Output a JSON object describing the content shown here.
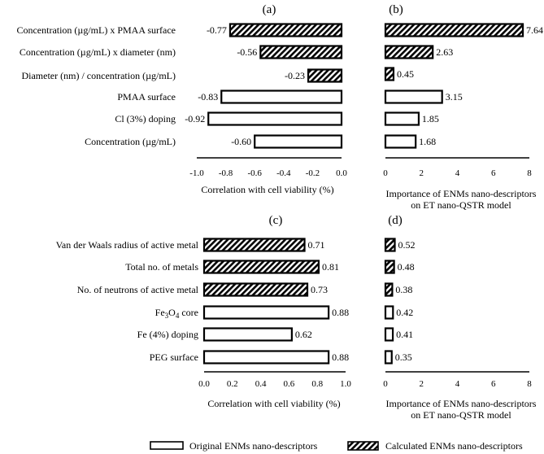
{
  "chart_data": [
    {
      "type": "bar",
      "orientation": "horizontal",
      "panel_label": "(a)",
      "categories": [
        "Concentration (µg/mL) x PMAA surface",
        "Concentration (µg/mL) x diameter (nm)",
        "Diameter (nm) / concentration (µg/mL)",
        "PMAA surface",
        "Cl (3%) doping",
        "Concentration (µg/mL)"
      ],
      "values": [
        -0.77,
        -0.56,
        -0.23,
        -0.83,
        -0.92,
        -0.6
      ],
      "value_labels": [
        "-0.77",
        "-0.56",
        "-0.23",
        "-0.83",
        "-0.92",
        "-0.60"
      ],
      "kinds": [
        "calculated",
        "calculated",
        "calculated",
        "original",
        "original",
        "original"
      ],
      "xlim": [
        -1.0,
        0.0
      ],
      "xticks": [
        "-1.0",
        "-0.8",
        "-0.6",
        "-0.4",
        "-0.2",
        "0.0"
      ],
      "xlabel": [
        "Correlation with cell viability (%)"
      ]
    },
    {
      "type": "bar",
      "orientation": "horizontal",
      "panel_label": "(b)",
      "values": [
        7.64,
        2.63,
        0.45,
        3.15,
        1.85,
        1.68
      ],
      "value_labels": [
        "7.64",
        "2.63",
        "0.45",
        "3.15",
        "1.85",
        "1.68"
      ],
      "kinds": [
        "calculated",
        "calculated",
        "calculated",
        "original",
        "original",
        "original"
      ],
      "xlim": [
        0,
        8
      ],
      "xticks": [
        "0",
        "2",
        "4",
        "6",
        "8"
      ],
      "xlabel": [
        "Importance of ENMs nano-descriptors",
        "on ET nano-QSTR model"
      ]
    },
    {
      "type": "bar",
      "orientation": "horizontal",
      "panel_label": "(c)",
      "categories": [
        "Van der Waals radius of active metal",
        "Total no. of metals",
        "No. of neutrons of active metal",
        "Fe3O4 core",
        "Fe (4%) doping",
        "PEG surface"
      ],
      "values": [
        0.71,
        0.81,
        0.73,
        0.88,
        0.62,
        0.88
      ],
      "value_labels": [
        "0.71",
        "0.81",
        "0.73",
        "0.88",
        "0.62",
        "0.88"
      ],
      "kinds": [
        "calculated",
        "calculated",
        "calculated",
        "original",
        "original",
        "original"
      ],
      "xlim": [
        0.0,
        1.0
      ],
      "xticks": [
        "0.0",
        "0.2",
        "0.4",
        "0.6",
        "0.8",
        "1.0"
      ],
      "xlabel": [
        "Correlation with cell viability (%)"
      ]
    },
    {
      "type": "bar",
      "orientation": "horizontal",
      "panel_label": "(d)",
      "values": [
        0.52,
        0.48,
        0.38,
        0.42,
        0.41,
        0.35
      ],
      "value_labels": [
        "0.52",
        "0.48",
        "0.38",
        "0.42",
        "0.41",
        "0.35"
      ],
      "kinds": [
        "calculated",
        "calculated",
        "calculated",
        "original",
        "original",
        "original"
      ],
      "xlim": [
        0,
        8
      ],
      "xticks": [
        "0",
        "2",
        "4",
        "6",
        "8"
      ],
      "xlabel": [
        "Importance of ENMs nano-descriptors",
        "on ET nano-QSTR model"
      ]
    }
  ],
  "legend": {
    "position": "bottom",
    "original": "Original ENMs nano-descriptors",
    "calculated": "Calculated ENMs nano-descriptors"
  }
}
